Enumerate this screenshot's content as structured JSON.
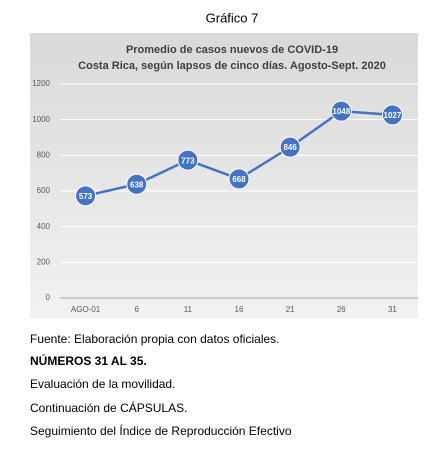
{
  "header": {
    "title": "Gráfico 7"
  },
  "chart_data": {
    "type": "line",
    "title": "Promedio de casos nuevos de COVID-19",
    "subtitle": "Costa Rica, según lapsos de cinco días. Agosto-Sept. 2020",
    "categories": [
      "AGO-01",
      "6",
      "11",
      "16",
      "21",
      "26",
      "31"
    ],
    "values": [
      573,
      638,
      773,
      668,
      846,
      1048,
      1027
    ],
    "color": "#4472c4",
    "ylim": [
      0,
      1200
    ],
    "yticks": [
      0,
      200,
      400,
      600,
      800,
      1000,
      1200
    ],
    "grid": true
  },
  "paragraphs": [
    {
      "text": "Fuente: Elaboración propia con datos oficiales.",
      "bold": false
    },
    {
      "text": "NÚMEROS 31 AL 35.",
      "bold": true
    },
    {
      "text": "Evaluación de la movilidad.",
      "bold": false
    },
    {
      "text": "Continuación de CÁPSULAS.",
      "bold": false
    },
    {
      "text": "Seguimiento del Índice de Reproducción Efectivo",
      "bold": false
    }
  ]
}
